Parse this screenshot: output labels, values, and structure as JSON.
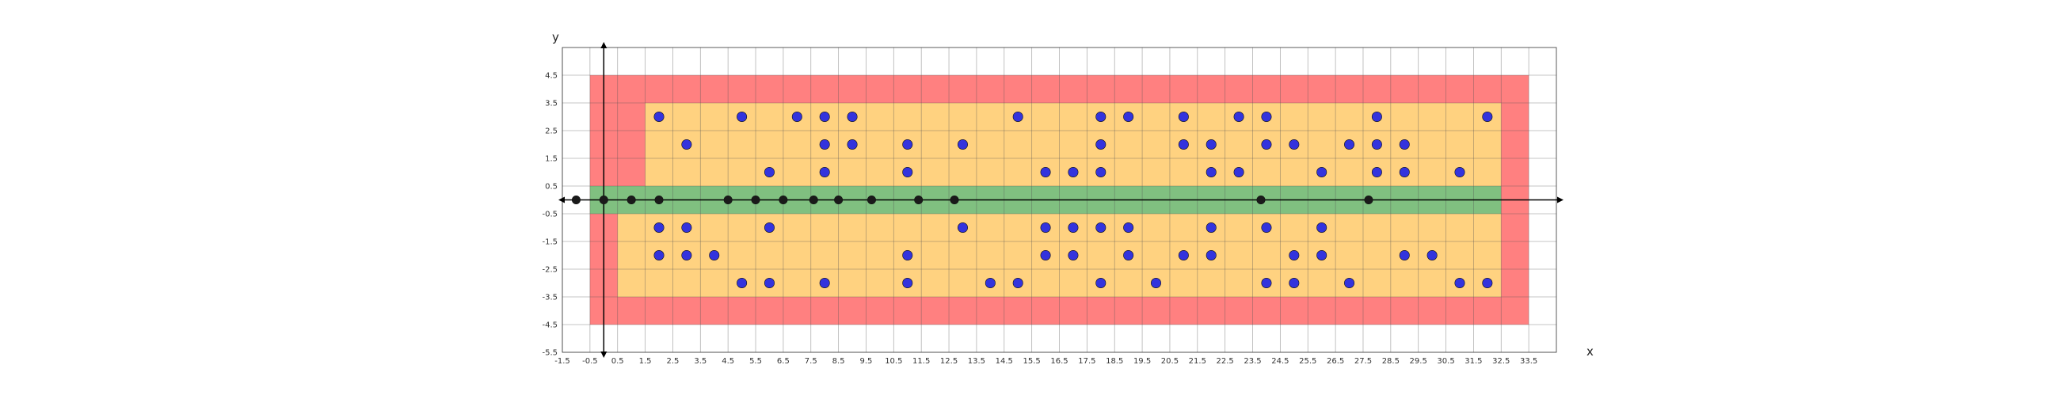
{
  "chart_data": {
    "type": "scatter",
    "title": "",
    "xlabel": "x",
    "ylabel": "y",
    "xlim": [
      -1.5,
      34.5
    ],
    "ylim": [
      -5.5,
      5.5
    ],
    "grid": true,
    "xticks": [
      "-1.5",
      "-0.5",
      "0.5",
      "1.5",
      "2.5",
      "3.5",
      "4.5",
      "5.5",
      "6.5",
      "7.5",
      "8.5",
      "9.5",
      "10.5",
      "11.5",
      "12.5",
      "13.5",
      "14.5",
      "15.5",
      "16.5",
      "17.5",
      "18.5",
      "19.5",
      "20.5",
      "21.5",
      "22.5",
      "23.5",
      "24.5",
      "25.5",
      "26.5",
      "27.5",
      "28.5",
      "29.5",
      "30.5",
      "31.5",
      "32.5",
      "33.5"
    ],
    "yticks": [
      "-5.5",
      "-4.5",
      "-3.5",
      "-2.5",
      "-1.5",
      "-0.5",
      "0.5",
      "1.5",
      "2.5",
      "3.5",
      "4.5"
    ],
    "regions": [
      {
        "color": "#ff8080",
        "x": [
          -0.5,
          33.5
        ],
        "y": [
          -4.5,
          4.5
        ]
      },
      {
        "color": "#ffd280",
        "x": [
          1.5,
          32.5
        ],
        "y": [
          0.5,
          3.5
        ]
      },
      {
        "color": "#ffd280",
        "x": [
          0.5,
          32.5
        ],
        "y": [
          -3.5,
          -0.5
        ]
      },
      {
        "color": "#80c080",
        "x": [
          -0.5,
          32.5
        ],
        "y": [
          -0.5,
          0.5
        ]
      }
    ],
    "series": [
      {
        "color": "#3333dd",
        "points": [
          [
            2,
            3
          ],
          [
            5,
            3
          ],
          [
            7,
            3
          ],
          [
            8,
            3
          ],
          [
            9,
            3
          ],
          [
            15,
            3
          ],
          [
            18,
            3
          ],
          [
            19,
            3
          ],
          [
            21,
            3
          ],
          [
            23,
            3
          ],
          [
            24,
            3
          ],
          [
            28,
            3
          ],
          [
            32,
            3
          ],
          [
            3,
            2
          ],
          [
            8,
            2
          ],
          [
            9,
            2
          ],
          [
            11,
            2
          ],
          [
            13,
            2
          ],
          [
            18,
            2
          ],
          [
            21,
            2
          ],
          [
            22,
            2
          ],
          [
            24,
            2
          ],
          [
            25,
            2
          ],
          [
            27,
            2
          ],
          [
            28,
            2
          ],
          [
            29,
            2
          ],
          [
            6,
            1
          ],
          [
            8,
            1
          ],
          [
            11,
            1
          ],
          [
            16,
            1
          ],
          [
            17,
            1
          ],
          [
            18,
            1
          ],
          [
            22,
            1
          ],
          [
            23,
            1
          ],
          [
            26,
            1
          ],
          [
            28,
            1
          ],
          [
            29,
            1
          ],
          [
            31,
            1
          ],
          [
            2,
            -1
          ],
          [
            3,
            -1
          ],
          [
            6,
            -1
          ],
          [
            13,
            -1
          ],
          [
            16,
            -1
          ],
          [
            17,
            -1
          ],
          [
            18,
            -1
          ],
          [
            19,
            -1
          ],
          [
            22,
            -1
          ],
          [
            24,
            -1
          ],
          [
            26,
            -1
          ],
          [
            2,
            -2
          ],
          [
            3,
            -2
          ],
          [
            4,
            -2
          ],
          [
            11,
            -2
          ],
          [
            16,
            -2
          ],
          [
            17,
            -2
          ],
          [
            19,
            -2
          ],
          [
            21,
            -2
          ],
          [
            22,
            -2
          ],
          [
            25,
            -2
          ],
          [
            26,
            -2
          ],
          [
            29,
            -2
          ],
          [
            30,
            -2
          ],
          [
            5,
            -3
          ],
          [
            6,
            -3
          ],
          [
            8,
            -3
          ],
          [
            11,
            -3
          ],
          [
            14,
            -3
          ],
          [
            15,
            -3
          ],
          [
            18,
            -3
          ],
          [
            20,
            -3
          ],
          [
            24,
            -3
          ],
          [
            25,
            -3
          ],
          [
            27,
            -3
          ],
          [
            31,
            -3
          ],
          [
            32,
            -3
          ]
        ]
      },
      {
        "color": "#1a1a1a",
        "points": [
          [
            -1,
            0
          ],
          [
            0,
            0
          ],
          [
            1,
            0
          ],
          [
            2,
            0
          ],
          [
            4.5,
            0
          ],
          [
            5.5,
            0
          ],
          [
            6.5,
            0
          ],
          [
            7.6,
            0
          ],
          [
            8.5,
            0
          ],
          [
            9.7,
            0
          ],
          [
            11.4,
            0
          ],
          [
            12.7,
            0
          ],
          [
            23.8,
            0
          ],
          [
            27.7,
            0
          ]
        ]
      }
    ]
  }
}
